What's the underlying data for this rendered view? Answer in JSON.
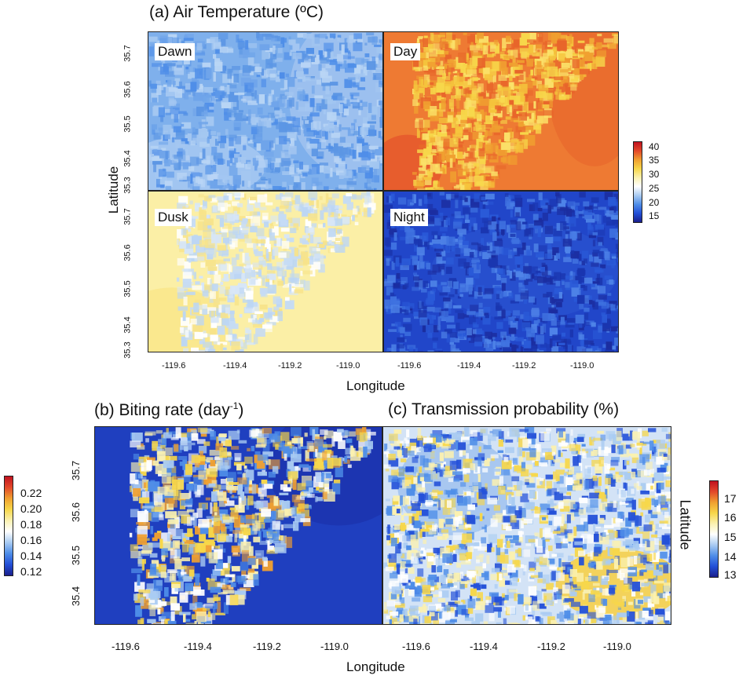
{
  "panel_a": {
    "title": "(a) Air Temperature (ºC)",
    "ylabel": "Latitude",
    "xlabel": "Longitude",
    "subpanels": {
      "dawn": "Dawn",
      "day": "Day",
      "dusk": "Dusk",
      "night": "Night"
    },
    "yticks_top": [
      "35.7",
      "35.6",
      "35.5",
      "35.4",
      "35.3"
    ],
    "yticks_bottom": [
      "35.7",
      "35.6",
      "35.5",
      "35.4",
      "35.3"
    ],
    "xticks": [
      "-119.6",
      "-119.4",
      "-119.2",
      "-119.0"
    ],
    "colorbar": {
      "ticks": [
        "40",
        "35",
        "30",
        "25",
        "20",
        "15"
      ],
      "range": [
        12,
        41
      ]
    }
  },
  "panel_b": {
    "title_main": "(b) Biting rate (day",
    "title_sup": "-1",
    "title_end": ")",
    "yticks": [
      "35.7",
      "35.6",
      "35.5",
      "35.4"
    ],
    "xticks": [
      "-119.6",
      "-119.4",
      "-119.2",
      "-119.0"
    ],
    "colorbar": {
      "ticks": [
        "0.22",
        "0.20",
        "0.18",
        "0.16",
        "0.14",
        "0.12"
      ],
      "range": [
        0.11,
        0.235
      ]
    }
  },
  "panel_c": {
    "title": "(c) Transmission probability (%)",
    "xticks": [
      "-119.6",
      "-119.4",
      "-119.2",
      "-119.0"
    ],
    "colorbar": {
      "ticks": [
        "17",
        "16",
        "15",
        "14",
        "13"
      ],
      "range": [
        12.7,
        17.9
      ]
    },
    "right_label": "Latitude"
  },
  "bottom_xlabel": "Longitude",
  "colors": {
    "scale": [
      "#1a1f8c",
      "#2350d8",
      "#4f8ee8",
      "#a9cbf2",
      "#ffffff",
      "#fbf1b0",
      "#f7d74a",
      "#f0a030",
      "#e3492a",
      "#c1121f"
    ]
  }
}
